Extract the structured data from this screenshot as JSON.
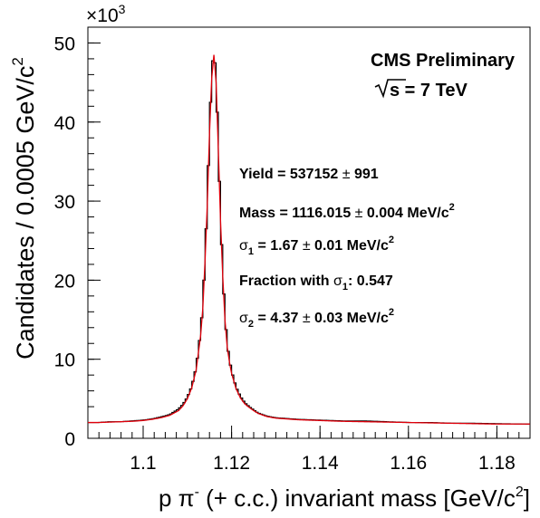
{
  "chart_data": {
    "type": "histogram",
    "title": "",
    "xlabel": {
      "main": "p π",
      "sup": "-",
      "rest": " (+ c.c.) invariant mass [GeV/c",
      "sup2": "2",
      "end": "]"
    },
    "ylabel": {
      "main": "Candidates / 0.0005 GeV/c",
      "sup": "2"
    },
    "y_multiplier": {
      "base": "×10",
      "exp": "3"
    },
    "xlim": [
      1.0875,
      1.1875
    ],
    "ylim": [
      0,
      52
    ],
    "x_ticks": [
      1.1,
      1.12,
      1.14,
      1.16,
      1.18
    ],
    "x_tick_labels": [
      "1.1",
      "1.12",
      "1.14",
      "1.16",
      "1.18"
    ],
    "y_ticks": [
      0,
      10,
      20,
      30,
      40,
      50
    ],
    "y_tick_labels": [
      "0",
      "10",
      "20",
      "30",
      "40",
      "50"
    ],
    "bin_width": 0.0005,
    "series": [
      {
        "kind": "data-histogram",
        "color": "#000000",
        "x": [
          1.0875,
          1.09,
          1.0925,
          1.095,
          1.0975,
          1.1,
          1.102,
          1.104,
          1.106,
          1.108,
          1.109,
          1.11,
          1.111,
          1.112,
          1.113,
          1.1135,
          1.114,
          1.1145,
          1.115,
          1.1155,
          1.116,
          1.1165,
          1.117,
          1.1175,
          1.118,
          1.1185,
          1.119,
          1.1195,
          1.12,
          1.121,
          1.122,
          1.123,
          1.124,
          1.125,
          1.126,
          1.128,
          1.13,
          1.135,
          1.14,
          1.145,
          1.15,
          1.155,
          1.16,
          1.165,
          1.17,
          1.175,
          1.18,
          1.1875
        ],
        "y": [
          2.0,
          2.0,
          2.1,
          2.1,
          2.2,
          2.3,
          2.45,
          2.7,
          3.0,
          3.7,
          4.3,
          5.2,
          6.6,
          9.0,
          13.5,
          17.0,
          23.0,
          30.0,
          39.0,
          46.0,
          49.5,
          45.5,
          37.0,
          28.0,
          21.0,
          15.5,
          12.0,
          10.0,
          8.5,
          6.5,
          5.3,
          4.5,
          4.0,
          3.6,
          3.2,
          2.8,
          2.6,
          2.4,
          2.3,
          2.2,
          2.2,
          2.1,
          2.0,
          2.0,
          1.9,
          1.9,
          1.85,
          1.8
        ]
      },
      {
        "kind": "fit",
        "color": "#e0000b",
        "x": [
          1.0875,
          1.09,
          1.0925,
          1.095,
          1.0975,
          1.1,
          1.102,
          1.104,
          1.106,
          1.108,
          1.109,
          1.11,
          1.111,
          1.112,
          1.113,
          1.1135,
          1.114,
          1.1145,
          1.115,
          1.1155,
          1.116,
          1.1165,
          1.117,
          1.1175,
          1.118,
          1.1185,
          1.119,
          1.1195,
          1.12,
          1.121,
          1.122,
          1.123,
          1.124,
          1.125,
          1.126,
          1.128,
          1.13,
          1.135,
          1.14,
          1.145,
          1.15,
          1.155,
          1.16,
          1.165,
          1.17,
          1.175,
          1.18,
          1.1875
        ],
        "y": [
          2.0,
          2.0,
          2.05,
          2.1,
          2.15,
          2.25,
          2.4,
          2.6,
          2.9,
          3.5,
          4.1,
          5.0,
          6.4,
          8.7,
          13.0,
          16.5,
          22.5,
          29.5,
          38.5,
          45.5,
          48.5,
          45.0,
          36.5,
          27.5,
          20.5,
          15.0,
          11.6,
          9.7,
          8.2,
          6.3,
          5.1,
          4.35,
          3.9,
          3.5,
          3.15,
          2.75,
          2.55,
          2.35,
          2.25,
          2.15,
          2.1,
          2.05,
          2.0,
          1.95,
          1.9,
          1.85,
          1.8,
          1.8
        ]
      }
    ],
    "annotations": {
      "experiment": "CMS Preliminary",
      "energy": {
        "sqrt": "s",
        "rest": " = 7 TeV"
      },
      "yield": {
        "label": "Yield = 537152 ",
        "pm": "±",
        "value": " 991"
      },
      "mass": {
        "label": "Mass = 1116.015 ",
        "pm": "±",
        "value": " 0.004 MeV/c",
        "sup": "2"
      },
      "sigma1": {
        "sym": "σ",
        "sub": "1",
        "label": " = 1.67 ",
        "pm": "±",
        "value": " 0.01 MeV/c",
        "sup": "2"
      },
      "fraction": {
        "label": "Fraction with ",
        "sym": "σ",
        "sub": "1",
        "value": ": 0.547"
      },
      "sigma2": {
        "sym": "σ",
        "sub": "2",
        "label": " = 4.37 ",
        "pm": "±",
        "value": " 0.03 MeV/c",
        "sup": "2"
      }
    },
    "grid": false,
    "legend": "none"
  }
}
